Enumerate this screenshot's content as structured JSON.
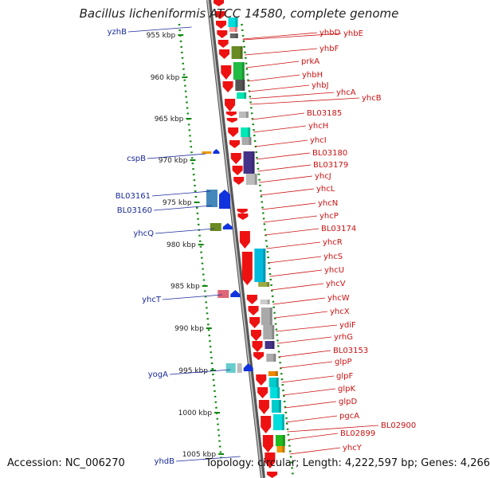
{
  "title": "Bacillus licheniformis ATCC 14580, complete genome",
  "footer": {
    "accession": "Accession: NC_006270",
    "summary": "Topology: circular; Length: 4,222,597 bp; Genes: 4,266"
  },
  "ticks": [
    "955 kbp",
    "960 kbp",
    "965 kbp",
    "970 kbp",
    "975 kbp",
    "980 kbp",
    "985 kbp",
    "990 kbp",
    "995 kbp",
    "1000 kbp",
    "1005 kbp"
  ],
  "right_labels": [
    "yhbD",
    "yhbE",
    "yhbF",
    "prkA",
    "yhbH",
    "yhbJ",
    "yhcA",
    "yhcB",
    "BL03185",
    "yhcH",
    "yhcI",
    "BL03180",
    "BL03179",
    "yhcJ",
    "yhcL",
    "yhcN",
    "yhcP",
    "BL03174",
    "yhcR",
    "yhcS",
    "yhcU",
    "yhcV",
    "yhcW",
    "yhcX",
    "ydiF",
    "yrhG",
    "BL03153",
    "glpP",
    "glpF",
    "glpK",
    "glpD",
    "pgcA",
    "BL02900",
    "BL02899",
    "yhcY"
  ],
  "left_labels": [
    "yzhB",
    "cspB",
    "BL03161",
    "BL03160",
    "yhcQ",
    "yhcT",
    "yogA",
    "yhdB"
  ],
  "colors": {
    "forward_gene": "#ee1111",
    "right_label": "#cc1111",
    "left_label": "#1a2a9a",
    "reverse_gene": "#1133dd",
    "backbone": "#888888",
    "ruler": "#118811"
  }
}
